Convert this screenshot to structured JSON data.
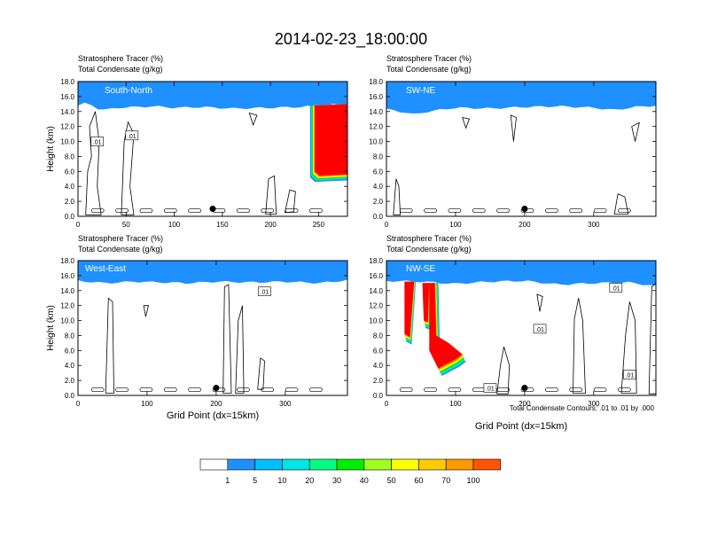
{
  "title": "2014-02-23_18:00:00",
  "footnote": "Total Condensate Contours: .01 to .01 by .000",
  "colorbar": {
    "labels": [
      "1",
      "5",
      "10",
      "20",
      "30",
      "40",
      "50",
      "60",
      "70",
      "100"
    ],
    "colors": [
      "#ffffff",
      "#1e90ff",
      "#00bfff",
      "#00e5e5",
      "#00ff7f",
      "#00ee00",
      "#a0ff20",
      "#ffff00",
      "#ffcc00",
      "#ff9900",
      "#ff5500",
      "#ff0000"
    ]
  },
  "chart_data": [
    {
      "type": "heatmap",
      "panel_label": "South-North",
      "left_title_1": "Stratosphere Tracer   (%)",
      "left_title_2": "Total Condensate   (g/kg)",
      "ylabel": "Height (km)",
      "xlabel": "",
      "xlim": [
        0,
        280
      ],
      "ylim": [
        0,
        18
      ],
      "xticks": [
        "0",
        "50",
        "100",
        "150",
        "200",
        "250"
      ],
      "yticks": [
        "0.0",
        "2.0",
        "4.0",
        "6.0",
        "8.0",
        "10.0",
        "12.0",
        "14.0",
        "16.0",
        "18.0"
      ],
      "contour_labels": [
        ".01",
        ".01"
      ],
      "tracer_top": [
        [
          0,
          14.8
        ],
        [
          10,
          15.2
        ],
        [
          20,
          14.4
        ],
        [
          30,
          14.2
        ],
        [
          40,
          14.5
        ],
        [
          60,
          14.6
        ],
        [
          80,
          14.7
        ],
        [
          100,
          14.5
        ],
        [
          130,
          14.6
        ],
        [
          160,
          14.4
        ],
        [
          200,
          14.5
        ],
        [
          230,
          14.6
        ],
        [
          245,
          14.7
        ],
        [
          250,
          14.8
        ],
        [
          280,
          15.0
        ]
      ],
      "intrusion": [
        [
          246,
          6.0
        ],
        [
          280,
          6.5
        ]
      ],
      "marker": [
        140,
        1.0
      ]
    },
    {
      "type": "heatmap",
      "panel_label": "SW-NE",
      "left_title_1": "Stratosphere Tracer   (%)",
      "left_title_2": "Total Condensate   (g/kg)",
      "ylabel": "",
      "xlabel": "",
      "xlim": [
        0,
        390
      ],
      "ylim": [
        0,
        18
      ],
      "xticks": [
        "0",
        "100",
        "200",
        "300"
      ],
      "yticks": [
        "0.0",
        "2.0",
        "4.0",
        "6.0",
        "8.0",
        "10.0",
        "12.0",
        "14.0",
        "16.0",
        "18.0"
      ],
      "contour_labels": [],
      "tracer_top": [
        [
          0,
          14.3
        ],
        [
          20,
          14.0
        ],
        [
          40,
          13.6
        ],
        [
          60,
          14.0
        ],
        [
          100,
          14.5
        ],
        [
          150,
          14.4
        ],
        [
          200,
          14.6
        ],
        [
          250,
          14.7
        ],
        [
          300,
          14.5
        ],
        [
          330,
          14.2
        ],
        [
          360,
          14.6
        ],
        [
          390,
          14.8
        ]
      ],
      "marker": [
        200,
        1.0
      ]
    },
    {
      "type": "heatmap",
      "panel_label": "West-East",
      "left_title_1": "Stratosphere Tracer   (%)",
      "left_title_2": "Total Condensate   (g/kg)",
      "ylabel": "Height (km)",
      "xlabel": "Grid Point (dx=15km)",
      "xlim": [
        0,
        390
      ],
      "ylim": [
        0,
        18
      ],
      "xticks": [
        "0",
        "100",
        "200",
        "300"
      ],
      "yticks": [
        "0.0",
        "2.0",
        "4.0",
        "6.0",
        "8.0",
        "10.0",
        "12.0",
        "14.0",
        "16.0",
        "18.0"
      ],
      "contour_labels": [
        ".01"
      ],
      "tracer_top": [
        [
          0,
          15.3
        ],
        [
          40,
          15.0
        ],
        [
          80,
          15.2
        ],
        [
          120,
          15.1
        ],
        [
          160,
          15.0
        ],
        [
          200,
          15.2
        ],
        [
          250,
          15.1
        ],
        [
          300,
          15.2
        ],
        [
          350,
          15.0
        ],
        [
          390,
          15.4
        ]
      ],
      "marker": [
        200,
        1.0
      ]
    },
    {
      "type": "heatmap",
      "panel_label": "NW-SE",
      "left_title_1": "Stratosphere Tracer   (%)",
      "left_title_2": "Total Condensate   (g/kg)",
      "ylabel": "",
      "xlabel": "Grid Point (dx=15km)",
      "xlim": [
        0,
        390
      ],
      "ylim": [
        0,
        18
      ],
      "xticks": [
        "0",
        "100",
        "200",
        "300"
      ],
      "yticks": [
        "0.0",
        "2.0",
        "4.0",
        "6.0",
        "8.0",
        "10.0",
        "12.0",
        "14.0",
        "16.0",
        "18.0"
      ],
      "contour_labels": [
        ".01",
        ".01",
        ".01",
        ".01"
      ],
      "tracer_top": [
        [
          0,
          15.3
        ],
        [
          50,
          15.2
        ],
        [
          100,
          14.9
        ],
        [
          150,
          15.2
        ],
        [
          200,
          15.3
        ],
        [
          250,
          14.8
        ],
        [
          300,
          15.0
        ],
        [
          350,
          15.1
        ],
        [
          390,
          14.6
        ]
      ],
      "marker": [
        200,
        1.0
      ]
    }
  ]
}
